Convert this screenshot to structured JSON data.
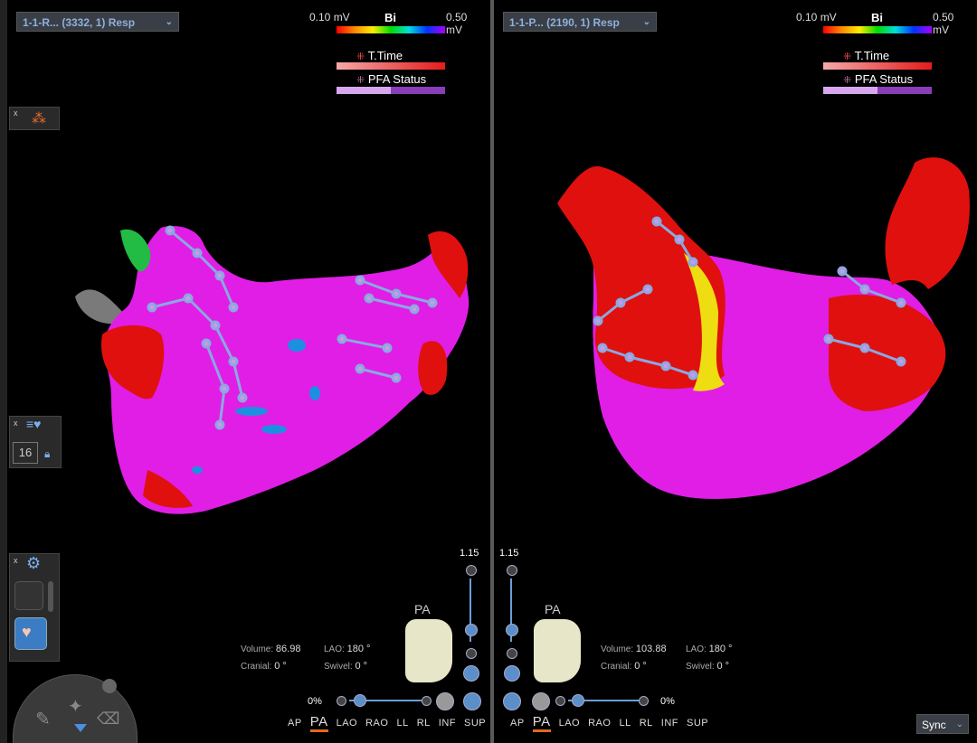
{
  "left_view": {
    "map_name": "1-1-R... (3332, 1) Resp",
    "scale": {
      "min": "0.10 mV",
      "type": "Bi",
      "max": "0.50 mV"
    },
    "legend": [
      {
        "label": "T.Time"
      },
      {
        "label": "PFA Status"
      }
    ],
    "zoom_level": "1.15",
    "orientation_label": "PA",
    "volume_label": "Volume:",
    "volume": "86.98",
    "lao_label": "LAO:",
    "lao": "180 °",
    "cranial_label": "Cranial:",
    "cranial": "0 °",
    "swivel_label": "Swivel:",
    "swivel": "0 °",
    "transparency": "0%",
    "view_buttons": [
      "AP",
      "PA",
      "LAO",
      "RAO",
      "LL",
      "RL",
      "INF",
      "SUP"
    ],
    "active_view": "PA"
  },
  "right_view": {
    "map_name": "1-1-P... (2190, 1) Resp",
    "scale": {
      "min": "0.10 mV",
      "type": "Bi",
      "max": "0.50 mV"
    },
    "legend": [
      {
        "label": "T.Time"
      },
      {
        "label": "PFA Status"
      }
    ],
    "zoom_level": "1.15",
    "orientation_label": "PA",
    "volume_label": "Volume:",
    "volume": "103.88",
    "lao_label": "LAO:",
    "lao": "180 °",
    "cranial_label": "Cranial:",
    "cranial": "0 °",
    "swivel_label": "Swivel:",
    "swivel": "0 °",
    "transparency": "0%",
    "view_buttons": [
      "AP",
      "PA",
      "LAO",
      "RAO",
      "LL",
      "RL",
      "INF",
      "SUP"
    ],
    "active_view": "PA"
  },
  "left_tools": {
    "close": "x",
    "point_count": "16"
  },
  "sync": {
    "label": "Sync"
  },
  "colors": {
    "magenta": "#e01ee6",
    "red": "#e0100e",
    "catheter": "#8aa8e0",
    "bg": "#000000"
  }
}
